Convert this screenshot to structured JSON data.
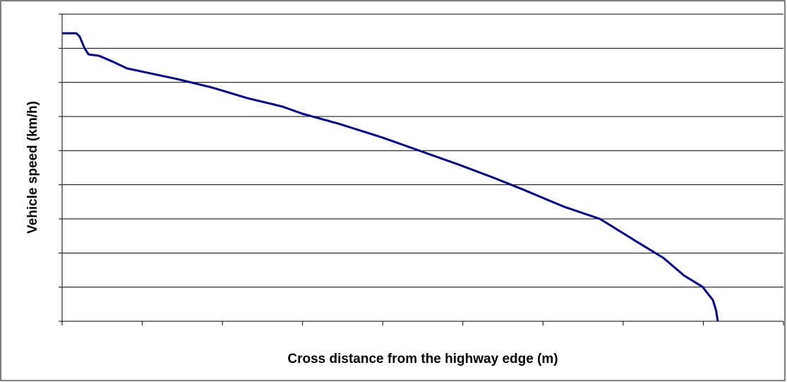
{
  "chart_data": {
    "type": "line",
    "xlabel": "Cross distance from the highway edge (m)",
    "ylabel": "Vehicle speed (km/h)",
    "x": [
      0,
      0.176,
      0.22,
      0.28,
      0.33,
      0.46,
      0.63,
      0.81,
      0.99,
      1.43,
      1.87,
      2.31,
      2.75,
      3.0,
      3.45,
      4.0,
      4.42,
      4.95,
      5.39,
      5.74,
      6.27,
      6.71,
      7.15,
      7.5,
      7.76,
      7.99,
      8.12,
      8.16,
      8.18
    ],
    "series": [
      {
        "color": "#000080",
        "values": [
          8.44,
          8.44,
          8.34,
          8.0,
          7.82,
          7.78,
          7.61,
          7.41,
          7.32,
          7.1,
          6.85,
          6.54,
          6.29,
          6.08,
          5.79,
          5.38,
          5.03,
          4.59,
          4.2,
          3.87,
          3.35,
          3.0,
          2.36,
          1.86,
          1.34,
          1.01,
          0.62,
          0.31,
          0
        ]
      }
    ],
    "xlim": [
      0,
      9
    ],
    "ylim": [
      0,
      9
    ],
    "xticks": [
      0,
      1,
      2,
      3,
      4,
      5,
      6,
      7,
      8,
      9
    ],
    "yticks": [
      0,
      1,
      2,
      3,
      4,
      5,
      6,
      7,
      8,
      9
    ],
    "grid": true
  }
}
